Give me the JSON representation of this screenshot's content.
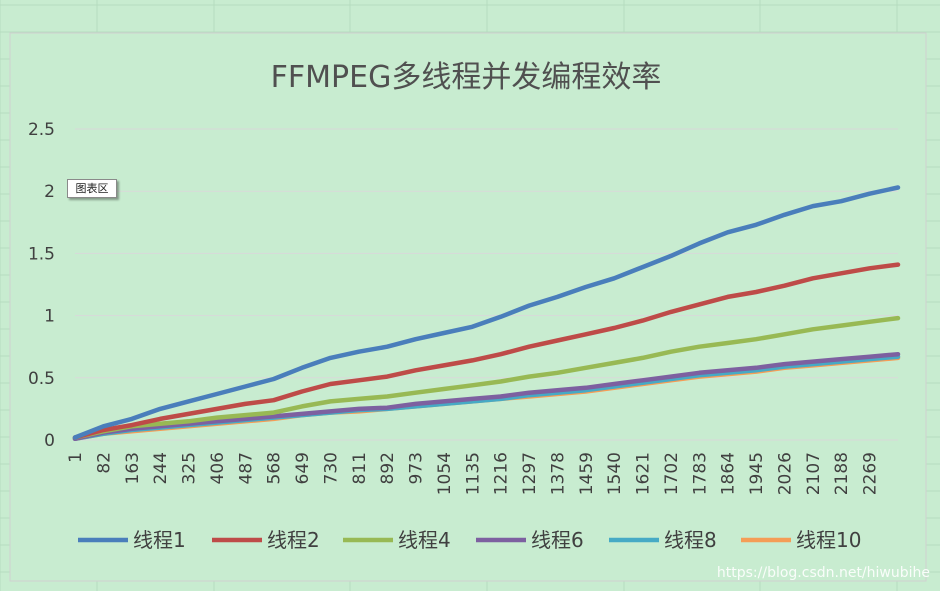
{
  "tooltip": "图表区",
  "watermark": "https://blog.csdn.net/hiwubihe",
  "colors": {
    "background": "#c8ecd0",
    "gridline": "#d9d9d9",
    "axis_text": "#404040"
  },
  "chart_data": {
    "type": "line",
    "title": "FFMPEG多线程并发编程效率",
    "xlabel": "",
    "ylabel": "",
    "ylim": [
      0,
      2.5
    ],
    "yticks": [
      "0",
      "0.5",
      "1",
      "1.5",
      "2",
      "2.5"
    ],
    "ytick_values": [
      0,
      0.5,
      1,
      1.5,
      2,
      2.5
    ],
    "xlim": [
      1,
      2350
    ],
    "xticks": [
      1,
      82,
      163,
      244,
      325,
      406,
      487,
      568,
      649,
      730,
      811,
      892,
      973,
      1054,
      1135,
      1216,
      1297,
      1378,
      1459,
      1540,
      1621,
      1702,
      1783,
      1864,
      1945,
      2026,
      2107,
      2188,
      2269
    ],
    "grid": true,
    "legend_position": "bottom",
    "x": [
      1,
      82,
      163,
      244,
      325,
      406,
      487,
      568,
      649,
      730,
      811,
      892,
      973,
      1054,
      1135,
      1216,
      1297,
      1378,
      1459,
      1540,
      1621,
      1702,
      1783,
      1864,
      1945,
      2026,
      2107,
      2188,
      2269,
      2350
    ],
    "series": [
      {
        "name": "线程1",
        "color": "#4a7ebb",
        "values": [
          0.02,
          0.11,
          0.17,
          0.25,
          0.31,
          0.37,
          0.43,
          0.49,
          0.58,
          0.66,
          0.71,
          0.75,
          0.81,
          0.86,
          0.91,
          0.99,
          1.08,
          1.15,
          1.23,
          1.3,
          1.39,
          1.48,
          1.58,
          1.67,
          1.73,
          1.81,
          1.88,
          1.92,
          1.98,
          2.03
        ]
      },
      {
        "name": "线程2",
        "color": "#be4b48",
        "values": [
          0.02,
          0.08,
          0.12,
          0.17,
          0.21,
          0.25,
          0.29,
          0.32,
          0.39,
          0.45,
          0.48,
          0.51,
          0.56,
          0.6,
          0.64,
          0.69,
          0.75,
          0.8,
          0.85,
          0.9,
          0.96,
          1.03,
          1.09,
          1.15,
          1.19,
          1.24,
          1.3,
          1.34,
          1.38,
          1.41
        ]
      },
      {
        "name": "线程4",
        "color": "#98b954",
        "values": [
          0.02,
          0.07,
          0.11,
          0.13,
          0.15,
          0.18,
          0.2,
          0.22,
          0.27,
          0.31,
          0.33,
          0.35,
          0.38,
          0.41,
          0.44,
          0.47,
          0.51,
          0.54,
          0.58,
          0.62,
          0.66,
          0.71,
          0.75,
          0.78,
          0.81,
          0.85,
          0.89,
          0.92,
          0.95,
          0.98
        ]
      },
      {
        "name": "线程6",
        "color": "#7d60a0",
        "values": [
          0.01,
          0.06,
          0.09,
          0.11,
          0.13,
          0.15,
          0.17,
          0.19,
          0.21,
          0.23,
          0.25,
          0.26,
          0.29,
          0.31,
          0.33,
          0.35,
          0.38,
          0.4,
          0.42,
          0.45,
          0.48,
          0.51,
          0.54,
          0.56,
          0.58,
          0.61,
          0.63,
          0.65,
          0.67,
          0.69
        ]
      },
      {
        "name": "线程8",
        "color": "#46aac5",
        "values": [
          0.01,
          0.05,
          0.08,
          0.1,
          0.12,
          0.14,
          0.16,
          0.18,
          0.2,
          0.22,
          0.24,
          0.25,
          0.27,
          0.29,
          0.31,
          0.33,
          0.36,
          0.38,
          0.4,
          0.43,
          0.46,
          0.49,
          0.52,
          0.54,
          0.56,
          0.59,
          0.61,
          0.63,
          0.65,
          0.67
        ]
      },
      {
        "name": "线程10",
        "color": "#f59d56",
        "values": [
          0.01,
          0.05,
          0.07,
          0.09,
          0.11,
          0.13,
          0.15,
          0.17,
          0.2,
          0.22,
          0.23,
          0.25,
          0.27,
          0.29,
          0.31,
          0.33,
          0.35,
          0.37,
          0.39,
          0.42,
          0.45,
          0.48,
          0.51,
          0.53,
          0.55,
          0.58,
          0.6,
          0.62,
          0.64,
          0.66
        ]
      }
    ]
  }
}
